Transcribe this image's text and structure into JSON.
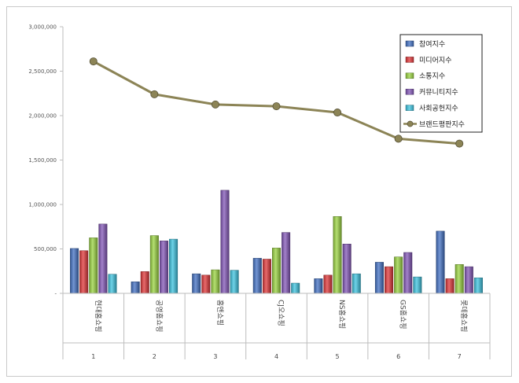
{
  "chart_data": {
    "type": "bar",
    "title": "",
    "xlabel": "",
    "ylabel": "",
    "ylim": [
      0,
      3000000
    ],
    "yticks": [
      {
        "value": 0,
        "label": "-"
      },
      {
        "value": 500000,
        "label": "500,000"
      },
      {
        "value": 1000000,
        "label": "1,000,000"
      },
      {
        "value": 1500000,
        "label": "1,500,000"
      },
      {
        "value": 2000000,
        "label": "2,000,000"
      },
      {
        "value": 2500000,
        "label": "2,500,000"
      },
      {
        "value": 3000000,
        "label": "3,000,000"
      }
    ],
    "categories": [
      "현대홈쇼핑",
      "공영홈쇼핑",
      "홈앤쇼핑",
      "CJ오쇼핑",
      "NS홈쇼핑",
      "GS홈쇼핑",
      "롯데홈쇼핑"
    ],
    "indices": [
      "1",
      "2",
      "3",
      "4",
      "5",
      "6",
      "7"
    ],
    "legend_position": "top-right",
    "grid": false,
    "series": [
      {
        "name": "참여지수",
        "kind": "bar",
        "color": "#4472c4",
        "values": [
          505000,
          130000,
          220000,
          395000,
          165000,
          350000,
          700000
        ]
      },
      {
        "name": "미디어지수",
        "kind": "bar",
        "color": "#e0383a",
        "values": [
          480000,
          245000,
          205000,
          385000,
          205000,
          300000,
          165000
        ]
      },
      {
        "name": "소통지수",
        "kind": "bar",
        "color": "#9bd442",
        "values": [
          625000,
          650000,
          265000,
          510000,
          865000,
          410000,
          325000
        ]
      },
      {
        "name": "커뮤니티지수",
        "kind": "bar",
        "color": "#8458b8",
        "values": [
          780000,
          590000,
          1160000,
          685000,
          555000,
          460000,
          300000
        ]
      },
      {
        "name": "사회공헌지수",
        "kind": "bar",
        "color": "#3fc4e0",
        "values": [
          215000,
          610000,
          260000,
          115000,
          220000,
          185000,
          175000
        ]
      },
      {
        "name": "브랜드평판지수",
        "kind": "line",
        "color": "#8c8456",
        "values": [
          2610000,
          2240000,
          2125000,
          2105000,
          2035000,
          1740000,
          1685000
        ]
      }
    ]
  }
}
